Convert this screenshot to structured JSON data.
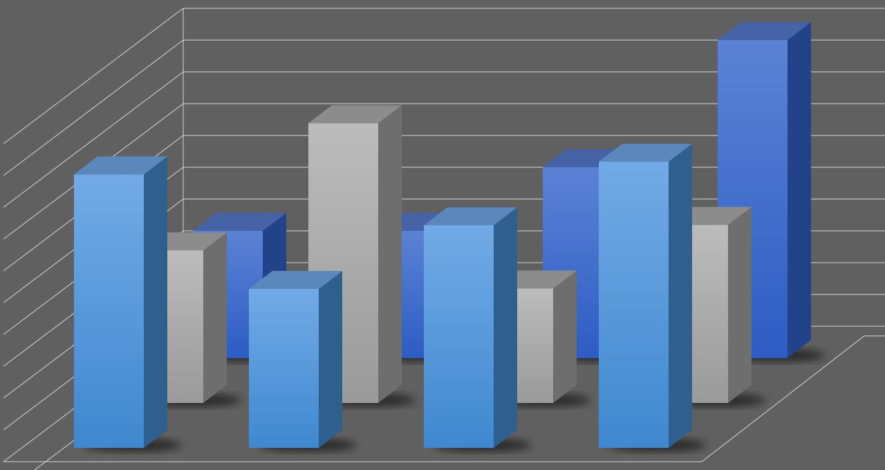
{
  "chart_data": {
    "type": "bar",
    "style": "3d-clustered-rows",
    "title": "",
    "xlabel": "",
    "ylabel": "",
    "ylim": [
      0,
      11
    ],
    "grid": true,
    "legend": "none",
    "categories": [
      "",
      "",
      "",
      ""
    ],
    "series": [
      {
        "row": "front",
        "color": "#5a9ee0",
        "values": [
          8.6,
          5.0,
          7.0,
          9.0
        ]
      },
      {
        "row": "middle",
        "color": "#a8a8a8",
        "values": [
          4.8,
          8.8,
          3.6,
          5.6
        ]
      },
      {
        "row": "back",
        "color": "#3d6ad0",
        "values": [
          4.0,
          4.0,
          6.0,
          10.0
        ]
      }
    ]
  },
  "colors": {
    "background": "#606060",
    "gridline": "#d8d8d8"
  }
}
